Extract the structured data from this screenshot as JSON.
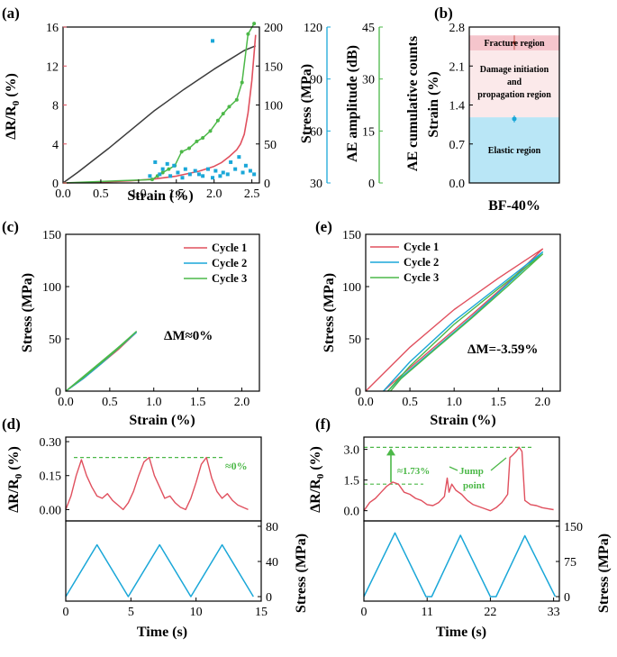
{
  "colors": {
    "resistance": "#e0505e",
    "stress_a": "#3c3c3c",
    "amplitude": "#1aa7d8",
    "counts": "#4cb848",
    "cycle1": "#e0505e",
    "cycle2": "#1aa7d8",
    "cycle3": "#4cb848",
    "annot": "#4cb848",
    "fracture_band": "#f5c5cc",
    "damage_band": "#fbe9ea",
    "elastic_band": "#b9e6f6"
  },
  "chart_data": [
    {
      "panel": "(a)",
      "type": "line",
      "xlabel": "Strain (%)",
      "x_ticks": [
        "0.0",
        "0.5",
        "1.0",
        "1.5",
        "2.0",
        "2.5"
      ],
      "xlim": [
        0,
        2.6
      ],
      "axes": {
        "resistance": {
          "label": "ΔR/R₀ (%)",
          "ylim": [
            0,
            16
          ],
          "ticks": [
            "0",
            "4",
            "8",
            "12",
            "16"
          ]
        },
        "stress": {
          "label": "Stress (MPa)",
          "ylim": [
            0,
            200
          ],
          "ticks": [
            "0",
            "50",
            "100",
            "150",
            "200"
          ]
        },
        "amplitude": {
          "label": "AE amplitude (dB)",
          "ylim": [
            30,
            120
          ],
          "ticks": [
            "30",
            "60",
            "90",
            "120"
          ]
        },
        "counts": {
          "label": "AE cumulative counts",
          "ylim": [
            0,
            45
          ],
          "ticks": [
            "0",
            "15",
            "30",
            "45"
          ]
        }
      },
      "series": [
        {
          "name": "ΔR/R0",
          "axis": "resistance",
          "x": [
            0,
            0.3,
            0.6,
            0.9,
            1.2,
            1.5,
            1.8,
            2.0,
            2.1,
            2.2,
            2.3,
            2.35,
            2.4,
            2.45,
            2.5,
            2.55
          ],
          "y": [
            0,
            0.05,
            0.12,
            0.22,
            0.4,
            0.7,
            1.2,
            1.7,
            2.1,
            2.7,
            3.4,
            4.0,
            5.0,
            7.2,
            10.5,
            15.2
          ]
        },
        {
          "name": "Stress",
          "axis": "stress",
          "x": [
            0,
            0.2,
            0.4,
            0.6,
            0.8,
            1.0,
            1.2,
            1.4,
            1.6,
            1.8,
            2.0,
            2.2,
            2.4,
            2.55
          ],
          "y": [
            0,
            14,
            29,
            44,
            60,
            76,
            92,
            106,
            120,
            133,
            146,
            158,
            170,
            176
          ]
        },
        {
          "name": "AE cumulative counts",
          "axis": "counts",
          "x": [
            0,
            1.18,
            1.25,
            1.32,
            1.4,
            1.48,
            1.57,
            1.67,
            1.77,
            1.85,
            1.95,
            2.05,
            2.12,
            2.2,
            2.3,
            2.37,
            2.45,
            2.53
          ],
          "y": [
            0,
            1,
            2,
            3,
            4,
            5,
            9,
            10,
            12,
            13,
            15,
            18,
            20,
            22,
            24,
            29,
            43,
            46
          ]
        },
        {
          "name": "AE amplitude",
          "axis": "amplitude",
          "type": "scatter",
          "x": [
            1.15,
            1.22,
            1.28,
            1.32,
            1.38,
            1.42,
            1.47,
            1.52,
            1.58,
            1.62,
            1.68,
            1.75,
            1.8,
            1.85,
            1.92,
            1.98,
            2.02,
            2.08,
            2.12,
            2.18,
            2.22,
            2.28,
            2.33,
            2.38,
            2.42,
            2.48,
            2.53,
            1.98
          ],
          "y": [
            34,
            42,
            35,
            38,
            41,
            34,
            40,
            36,
            33,
            38,
            35,
            37,
            35,
            34,
            38,
            33,
            37,
            34,
            36,
            35,
            42,
            38,
            45,
            36,
            40,
            37,
            35,
            112
          ]
        }
      ]
    },
    {
      "panel": "(b)",
      "type": "bar",
      "ylabel": "Strain (%)",
      "ylim": [
        0,
        2.8
      ],
      "y_ticks": [
        "0.0",
        "0.7",
        "1.4",
        "2.1",
        "2.8"
      ],
      "category": "BF-40%",
      "regions": [
        {
          "name": "Elastic region",
          "from": 0,
          "to": 1.18
        },
        {
          "name": "Damage initiation and propagation region",
          "from": 1.18,
          "to": 2.38
        },
        {
          "name": "Fracture region",
          "from": 2.38,
          "to": 2.65
        }
      ],
      "points": [
        {
          "name": "damage onset",
          "value": 1.15
        },
        {
          "name": "fracture",
          "value": 2.52
        }
      ]
    },
    {
      "panel": "(c)",
      "type": "line",
      "xlabel": "Strain (%)",
      "ylabel": "Stress (MPa)",
      "xlim": [
        0,
        2.2
      ],
      "ylim": [
        0,
        150
      ],
      "x_ticks": [
        "0.0",
        "0.5",
        "1.0",
        "1.5",
        "2.0"
      ],
      "y_ticks": [
        "0",
        "50",
        "100",
        "150"
      ],
      "legend": [
        "Cycle 1",
        "Cycle 2",
        "Cycle 3"
      ],
      "annotation": "ΔM≈0%",
      "series": [
        {
          "name": "Cycle 1",
          "x": [
            0,
            0.2,
            0.4,
            0.6,
            0.8,
            0.6,
            0.4,
            0.2,
            0
          ],
          "y": [
            0,
            13,
            27,
            41,
            56,
            40,
            26,
            12,
            0
          ]
        },
        {
          "name": "Cycle 2",
          "x": [
            0,
            0.2,
            0.4,
            0.6,
            0.8,
            0.6,
            0.4,
            0.2,
            0
          ],
          "y": [
            0,
            13,
            27,
            42,
            56,
            41,
            26,
            12,
            0
          ]
        },
        {
          "name": "Cycle 3",
          "x": [
            0,
            0.2,
            0.4,
            0.6,
            0.8,
            0.6,
            0.4,
            0.2,
            0
          ],
          "y": [
            0,
            14,
            28,
            42,
            57,
            41,
            27,
            13,
            0
          ]
        }
      ]
    },
    {
      "panel": "(e)",
      "type": "line",
      "xlabel": "Strain (%)",
      "ylabel": "Stress (MPa)",
      "xlim": [
        0,
        2.2
      ],
      "ylim": [
        0,
        150
      ],
      "x_ticks": [
        "0.0",
        "0.5",
        "1.0",
        "1.5",
        "2.0"
      ],
      "y_ticks": [
        "0",
        "50",
        "100",
        "150"
      ],
      "legend": [
        "Cycle 1",
        "Cycle 2",
        "Cycle 3"
      ],
      "annotation": "ΔM=-3.59%",
      "series": [
        {
          "name": "Cycle 1",
          "x": [
            0,
            0.5,
            1.0,
            1.5,
            2.0,
            1.6,
            1.2,
            0.8,
            0.4,
            0.2
          ],
          "y": [
            0,
            42,
            78,
            108,
            136,
            103,
            73,
            44,
            15,
            0
          ]
        },
        {
          "name": "Cycle 2",
          "x": [
            0.2,
            0.5,
            1.0,
            1.5,
            2.0,
            1.6,
            1.2,
            0.8,
            0.4,
            0.25
          ],
          "y": [
            0,
            28,
            67,
            100,
            133,
            102,
            71,
            42,
            13,
            0
          ]
        },
        {
          "name": "Cycle 3",
          "x": [
            0.25,
            0.5,
            1.0,
            1.5,
            2.0,
            1.6,
            1.2,
            0.8,
            0.4,
            0.28
          ],
          "y": [
            0,
            24,
            64,
            98,
            131,
            100,
            70,
            41,
            12,
            0
          ]
        }
      ]
    },
    {
      "panel": "(d)",
      "type": "line",
      "xlabel": "Time (s)",
      "x_ticks": [
        "0",
        "5",
        "10",
        "15"
      ],
      "xlim": [
        0,
        15
      ],
      "top": {
        "ylabel": "ΔR/R₀ (%)",
        "ylim": [
          -0.05,
          0.32
        ],
        "y_ticks": [
          "0.00",
          "0.15",
          "0.30"
        ],
        "reference_y": 0.23,
        "annotation": "≈0%",
        "series": {
          "name": "ΔR/R0",
          "t": [
            0,
            0.4,
            0.8,
            1.2,
            1.6,
            2.0,
            2.4,
            2.8,
            3.2,
            3.6,
            4.0,
            4.4,
            4.8,
            5.2,
            5.6,
            6.0,
            6.4,
            6.8,
            7.2,
            7.6,
            8.0,
            8.4,
            8.8,
            9.2,
            9.6,
            10.0,
            10.4,
            10.8,
            11.2,
            11.6,
            12.0,
            12.4,
            12.8,
            13.2,
            13.6,
            14.0
          ],
          "y": [
            0.0,
            0.06,
            0.15,
            0.22,
            0.15,
            0.1,
            0.06,
            0.05,
            0.07,
            0.04,
            0.02,
            0.0,
            0.03,
            0.08,
            0.15,
            0.21,
            0.23,
            0.15,
            0.1,
            0.05,
            0.06,
            0.03,
            0.01,
            0.0,
            0.05,
            0.12,
            0.2,
            0.23,
            0.14,
            0.08,
            0.05,
            0.07,
            0.04,
            0.02,
            0.01,
            0.0
          ]
        }
      },
      "bottom": {
        "ylabel": "Stress (MPa)",
        "ylim": [
          0,
          80
        ],
        "y_ticks": [
          "0",
          "40",
          "80"
        ],
        "series": {
          "name": "Stress",
          "t": [
            0,
            2.4,
            4.8,
            7.2,
            9.6,
            12.0,
            14.4
          ],
          "y": [
            0,
            59,
            0,
            59,
            0,
            59,
            0
          ]
        }
      }
    },
    {
      "panel": "(f)",
      "type": "line",
      "xlabel": "Time (s)",
      "x_ticks": [
        "0",
        "11",
        "22",
        "33"
      ],
      "xlim": [
        0,
        34
      ],
      "top": {
        "ylabel": "ΔR/R₀ (%)",
        "ylim": [
          -0.5,
          3.6
        ],
        "y_ticks": [
          "0.0",
          "1.5",
          "3.0"
        ],
        "reference_lines": [
          1.3,
          3.1
        ],
        "annotations": [
          "≈1.73%",
          "Jump",
          "point"
        ],
        "series": {
          "name": "ΔR/R0",
          "t": [
            0,
            1,
            2,
            3,
            4,
            5,
            6,
            7,
            8,
            9,
            10,
            11,
            12,
            13,
            14,
            14.5,
            14.8,
            15.3,
            16,
            17,
            18,
            19,
            20,
            21,
            22,
            23,
            24,
            25,
            25.4,
            25.8,
            26.5,
            27,
            27.5,
            28,
            29,
            30,
            31,
            32,
            33
          ],
          "y": [
            0.0,
            0.4,
            0.6,
            0.9,
            1.2,
            1.4,
            1.3,
            0.9,
            0.8,
            0.6,
            0.5,
            0.3,
            0.25,
            0.4,
            0.7,
            1.6,
            0.9,
            1.3,
            1.0,
            0.8,
            0.5,
            0.3,
            0.2,
            0.1,
            0.0,
            0.15,
            0.4,
            0.8,
            2.6,
            2.7,
            2.9,
            3.1,
            2.9,
            0.5,
            0.3,
            0.25,
            0.15,
            0.1,
            0.05
          ]
        }
      },
      "bottom": {
        "ylabel": "Stress (MPa)",
        "ylim": [
          0,
          150
        ],
        "y_ticks": [
          "0",
          "75",
          "150"
        ],
        "series": {
          "name": "Stress",
          "t": [
            0,
            5.4,
            10.8,
            11.8,
            16.8,
            22.0,
            23.0,
            28.0,
            33.3
          ],
          "y": [
            0,
            136,
            0,
            0,
            131,
            0,
            0,
            130,
            0
          ]
        }
      }
    }
  ],
  "panels": {
    "a": {
      "letter": "(a)",
      "xlabel": "Strain (%)",
      "x_ticks": [
        "0.0",
        "0.5",
        "1.0",
        "1.5",
        "2.0",
        "2.5"
      ],
      "ylabel_left_main": "ΔR/R",
      "ylabel_left_sub": "0",
      "ylabel_left_unit": " (%)",
      "ylabel_stress": "Stress (MPa)",
      "ylabel_amp": "AE amplitude (dB)",
      "ylabel_counts": "AE cumulative counts",
      "y_left_ticks": [
        "0",
        "4",
        "8",
        "12",
        "16"
      ],
      "y_stress_ticks": [
        "0",
        "50",
        "100",
        "150",
        "200"
      ],
      "y_amp_ticks": [
        "30",
        "60",
        "90",
        "120"
      ],
      "y_counts_ticks": [
        "0",
        "15",
        "30",
        "45"
      ]
    },
    "b": {
      "letter": "(b)",
      "ylabel": "Strain (%)",
      "y_ticks": [
        "0.0",
        "0.7",
        "1.4",
        "2.1",
        "2.8"
      ],
      "category": "BF-40%",
      "fracture": "Fracture region",
      "damage_1": "Damage initiation",
      "damage_2": "and",
      "damage_3": "propagation region",
      "elastic": "Elastic region"
    },
    "c": {
      "letter": "(c)",
      "xlabel": "Strain (%)",
      "ylabel": "Stress (MPa)",
      "x_ticks": [
        "0.0",
        "0.5",
        "1.0",
        "1.5",
        "2.0"
      ],
      "y_ticks": [
        "0",
        "50",
        "100",
        "150"
      ],
      "legend": [
        "Cycle 1",
        "Cycle 2",
        "Cycle 3"
      ],
      "annotation": "ΔM≈0%"
    },
    "e": {
      "letter": "(e)",
      "xlabel": "Strain (%)",
      "ylabel": "Stress (MPa)",
      "x_ticks": [
        "0.0",
        "0.5",
        "1.0",
        "1.5",
        "2.0"
      ],
      "y_ticks": [
        "0",
        "50",
        "100",
        "150"
      ],
      "legend": [
        "Cycle 1",
        "Cycle 2",
        "Cycle 3"
      ],
      "annotation": "ΔM=-3.59%"
    },
    "d": {
      "letter": "(d)",
      "xlabel": "Time (s)",
      "x_ticks": [
        "0",
        "5",
        "10",
        "15"
      ],
      "ylabel_top_main": "ΔR/R",
      "ylabel_top_sub": "0",
      "ylabel_top_unit": " (%)",
      "ylabel_bottom": "Stress (MPa)",
      "y_top_ticks": [
        "0.00",
        "0.15",
        "0.30"
      ],
      "y_bottom_ticks": [
        "0",
        "40",
        "80"
      ],
      "annotation": "≈0%"
    },
    "f": {
      "letter": "(f)",
      "xlabel": "Time (s)",
      "x_ticks": [
        "0",
        "11",
        "22",
        "33"
      ],
      "ylabel_top_main": "ΔR/R",
      "ylabel_top_sub": "0",
      "ylabel_top_unit": " (%)",
      "ylabel_bottom": "Stress (MPa)",
      "y_top_ticks": [
        "0.0",
        "1.5",
        "3.0"
      ],
      "y_bottom_ticks": [
        "0",
        "75",
        "150"
      ],
      "annot_pct": "≈1.73%",
      "annot_jump": "Jump",
      "annot_point": "point"
    }
  }
}
